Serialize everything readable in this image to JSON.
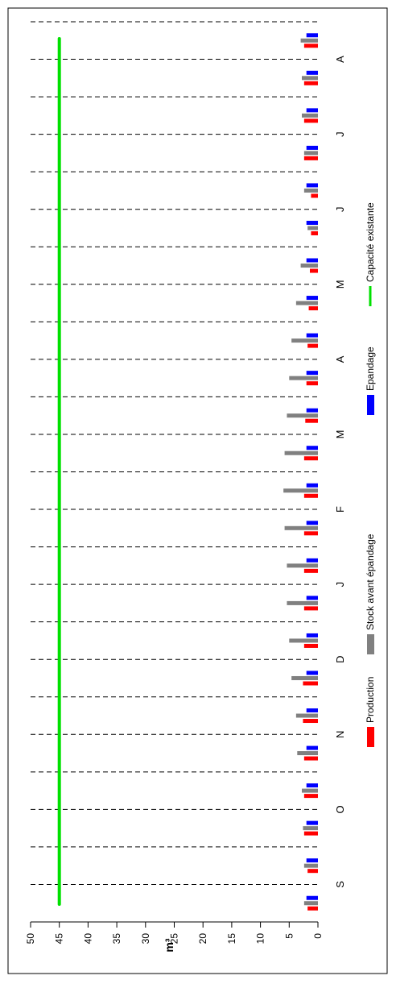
{
  "chart_data": {
    "type": "bar",
    "orientation": "horizontal",
    "ylabel": "m³",
    "ylim": [
      0,
      50
    ],
    "yticks": [
      0,
      5,
      10,
      15,
      20,
      25,
      30,
      35,
      40,
      45,
      50
    ],
    "month_labels": [
      "S",
      "O",
      "N",
      "D",
      "J",
      "F",
      "M",
      "A",
      "M",
      "J",
      "J",
      "A"
    ],
    "periods": 24,
    "series": [
      {
        "name": "Production",
        "color": "#ff0000",
        "values": [
          1.8,
          1.8,
          2.4,
          2.4,
          2.4,
          2.6,
          2.6,
          2.4,
          2.4,
          2.4,
          2.4,
          2.4,
          2.4,
          2.2,
          2.0,
          1.8,
          1.6,
          1.4,
          1.2,
          1.2,
          2.4,
          2.4,
          2.4,
          2.4
        ]
      },
      {
        "name": "Stock avant épandage",
        "color": "#808080",
        "values": [
          2.4,
          2.4,
          2.6,
          2.8,
          3.6,
          3.8,
          4.6,
          5.0,
          5.4,
          5.4,
          5.8,
          6.0,
          5.8,
          5.4,
          5.0,
          4.6,
          3.8,
          3.0,
          1.8,
          2.4,
          2.4,
          2.8,
          2.8,
          3.0
        ]
      },
      {
        "name": "Epandage",
        "color": "#0000ff",
        "values": [
          2.0,
          2.0,
          2.0,
          2.0,
          2.0,
          2.0,
          2.0,
          2.0,
          2.0,
          2.0,
          2.0,
          2.0,
          2.0,
          2.0,
          2.0,
          2.0,
          2.0,
          2.0,
          2.0,
          2.0,
          2.0,
          2.0,
          2.0,
          2.0
        ]
      }
    ],
    "capacity": {
      "name": "Capacité existante",
      "color": "#00e000",
      "value": 45
    },
    "grid": "dashed separators between periods",
    "legend_position": "right"
  }
}
